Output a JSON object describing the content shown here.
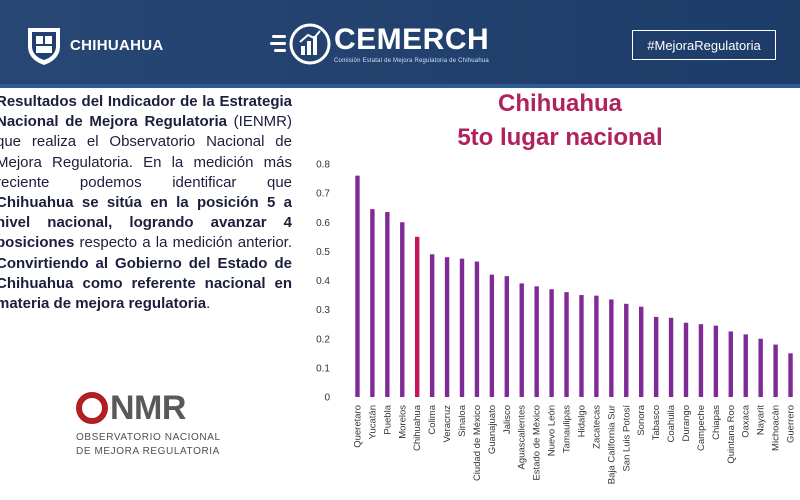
{
  "header": {
    "gov_logo_text": "CHIHUAHUA",
    "brand_title": "CEMERCH",
    "brand_subtitle": "Comisión Estatal de Mejora Regulatoria de Chihuahua",
    "hashtag": "#MejoraRegulatoria",
    "colors": {
      "bar_bg": "#1f3f6e",
      "accent_line": "#2c5a95"
    }
  },
  "paragraph": {
    "p1": "Resultados del Indicador de la Estrategia Nacional de Mejora Regulatoria",
    "p2": " (IENMR) que realiza el Observatorio Nacional de Mejora Regulatoria. En la medición más reciente podemos identificar que ",
    "p3": "Chihuahua se sitúa en la posición 5 a nivel nacional, logrando avanzar 4 posiciones",
    "p4": " respecto a la medición anterior. ",
    "p5": "Convirtiendo al Gobierno del Estado de Chihuahua como referente nacional en materia de mejora regulatoria",
    "p6": "."
  },
  "onmr": {
    "logo_text": "NMR",
    "line1": "OBSERVATORIO NACIONAL",
    "line2": "DE MEJORA REGULATORIA",
    "color": "#b21e22"
  },
  "chart_data": {
    "type": "bar",
    "title": "Chihuahua",
    "subtitle": "5to lugar nacional",
    "categories": [
      "Queretaro",
      "Yucatán",
      "Puebla",
      "Morelos",
      "Chihuahua",
      "Colima",
      "Veracruz",
      "Sinaloa",
      "Ciudad de México",
      "Guanajuato",
      "Jalisco",
      "Aguascalientes",
      "Estado de México",
      "Nuevo León",
      "Tamaulipas",
      "Hidalgo",
      "Zacatecas",
      "Baja California Sur",
      "San Luis Potosí",
      "Sonora",
      "Tabasco",
      "Coahuila",
      "Durango",
      "Campeche",
      "Chiapas",
      "Quintana Roo",
      "Oaxaca",
      "Nayarit",
      "Michoacán",
      "Guerrero"
    ],
    "values": [
      0.76,
      0.645,
      0.635,
      0.6,
      0.55,
      0.49,
      0.48,
      0.475,
      0.465,
      0.42,
      0.415,
      0.39,
      0.38,
      0.37,
      0.36,
      0.35,
      0.348,
      0.335,
      0.32,
      0.31,
      0.275,
      0.272,
      0.255,
      0.25,
      0.245,
      0.225,
      0.215,
      0.2,
      0.18,
      0.15
    ],
    "highlight": "Chihuahua",
    "ylim": [
      0,
      0.8
    ],
    "yticks": [
      "0",
      "0.1",
      "0.2",
      "0.3",
      "0.4",
      "0.5",
      "0.6",
      "0.7",
      "0.8"
    ],
    "grid": false,
    "colors": {
      "bar": "#7f2a96",
      "highlight": "#c2185b",
      "title": "#b0225e"
    }
  }
}
